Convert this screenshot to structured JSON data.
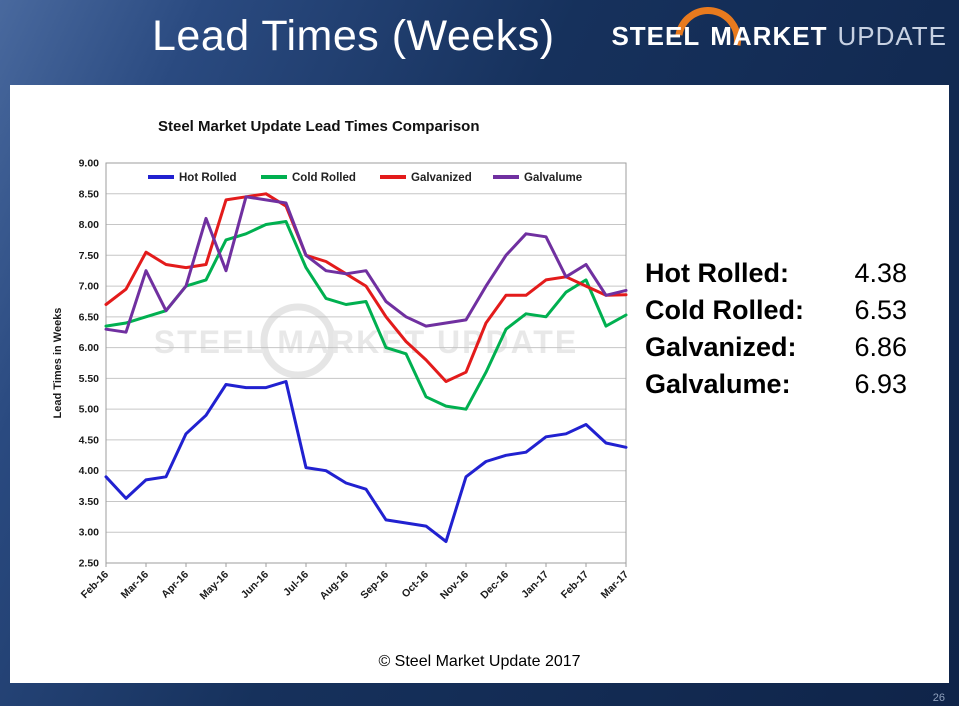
{
  "slide": {
    "title": "Lead Times (Weeks)",
    "footer": "© Steel Market Update 2017",
    "page_number": "26"
  },
  "logo": {
    "steel": "STEEL",
    "market": "MARKET",
    "update": "UPDATE"
  },
  "watermark": {
    "text": "STEEL MARKET UPDATE"
  },
  "stats": {
    "rows": [
      {
        "label": "Hot Rolled:",
        "value": "4.38"
      },
      {
        "label": "Cold Rolled:",
        "value": "6.53"
      },
      {
        "label": "Galvanized:",
        "value": "6.86"
      },
      {
        "label": "Galvalume:",
        "value": "6.93"
      }
    ]
  },
  "chart_data": {
    "type": "line",
    "title": "Steel Market Update Lead Times Comparison",
    "ylabel": "Lead Times in Weeks",
    "ylim": [
      2.5,
      9.0
    ],
    "ytick_step": 0.5,
    "grid": true,
    "legend_position": "top",
    "x_tick_labels": [
      "Feb-16",
      "Mar-16",
      "Apr-16",
      "May-16",
      "Jun-16",
      "Jul-16",
      "Aug-16",
      "Sep-16",
      "Oct-16",
      "Nov-16",
      "Dec-16",
      "Jan-17",
      "Feb-17",
      "Mar-17"
    ],
    "points_per_month": 2,
    "series": [
      {
        "name": "Hot Rolled",
        "color": "#2121d0",
        "values": [
          3.9,
          3.55,
          3.85,
          3.9,
          4.6,
          4.9,
          5.4,
          5.35,
          5.35,
          5.45,
          4.05,
          4.0,
          3.8,
          3.7,
          3.2,
          3.15,
          3.1,
          2.85,
          3.9,
          4.15,
          4.25,
          4.3,
          4.55,
          4.6,
          4.75,
          4.45,
          4.38
        ]
      },
      {
        "name": "Cold Rolled",
        "color": "#00b050",
        "values": [
          6.35,
          6.4,
          6.5,
          6.6,
          7.0,
          7.1,
          7.75,
          7.85,
          8.0,
          8.05,
          7.3,
          6.8,
          6.7,
          6.75,
          6.0,
          5.9,
          5.2,
          5.05,
          5.0,
          5.6,
          6.3,
          6.55,
          6.5,
          6.9,
          7.1,
          6.35,
          6.53
        ]
      },
      {
        "name": "Galvanized",
        "color": "#e31b1b",
        "values": [
          6.7,
          6.95,
          7.55,
          7.35,
          7.3,
          7.35,
          8.4,
          8.45,
          8.5,
          8.3,
          7.5,
          7.4,
          7.2,
          7.0,
          6.5,
          6.1,
          5.8,
          5.45,
          5.6,
          6.4,
          6.85,
          6.85,
          7.1,
          7.15,
          7.0,
          6.85,
          6.86
        ]
      },
      {
        "name": "Galvalume",
        "color": "#7030a0",
        "values": [
          6.3,
          6.25,
          7.25,
          6.6,
          7.0,
          8.1,
          7.25,
          8.45,
          8.4,
          8.35,
          7.5,
          7.25,
          7.2,
          7.25,
          6.75,
          6.5,
          6.35,
          6.4,
          6.45,
          7.0,
          7.5,
          7.85,
          7.8,
          7.15,
          7.35,
          6.85,
          6.93
        ]
      }
    ]
  }
}
